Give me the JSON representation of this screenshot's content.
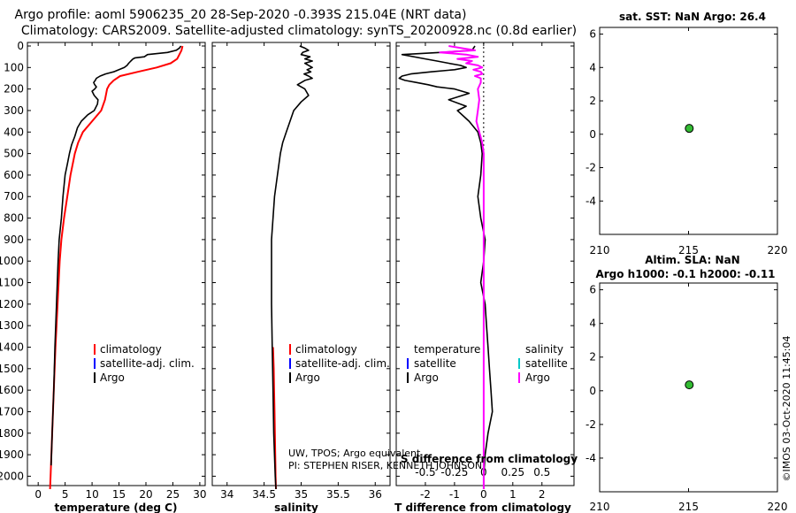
{
  "header": {
    "line1": "Argo profile: aoml 5906235_20 28-Sep-2020 -0.393S 215.04E (NRT data)",
    "line2": "Climatology: CARS2009. Satellite-adjusted climatology: synTS_20200928.nc (0.8d earlier)"
  },
  "colors": {
    "climatology": "#ff0000",
    "satellite_adj": "#0000ff",
    "argo": "#000000",
    "salinity_sat": "#00c8c8",
    "salinity_argo": "#ff00ff",
    "marker_fill": "#33bb33"
  },
  "depth_ticks": [
    "0",
    "100",
    "200",
    "300",
    "400",
    "500",
    "600",
    "700",
    "800",
    "900",
    "1000",
    "1100",
    "1200",
    "1300",
    "1400",
    "1500",
    "1600",
    "1700",
    "1800",
    "1900",
    "2000"
  ],
  "legend1": {
    "climatology": "climatology",
    "satellite": "satellite-adj. clim.",
    "argo": "Argo"
  },
  "legend2": {
    "climatology": "climatology",
    "satellite": "satellite-adj. clim.",
    "argo": "Argo"
  },
  "legend3": {
    "temperature_title": "temperature",
    "salinity_title": "salinity",
    "satellite": "satellite",
    "argo": "Argo"
  },
  "credit": {
    "line1": "UW, TPOS; Argo equivalent",
    "line2": "PI: STEPHEN RISER, KENNETH JOHNSON"
  },
  "side_title_1": "sat. SST: NaN Argo: 26.4",
  "side_title_2a": "Altim. SLA: NaN",
  "side_title_2b": "Argo h1000: -0.1 h2000: -0.11",
  "timestamp": "©IMOS 03-Oct-2020 11:45:04",
  "chart_data": [
    {
      "type": "line",
      "name": "temperature",
      "xlabel": "temperature (deg C)",
      "ylabel": "depth",
      "xlim": [
        -2,
        31
      ],
      "ylim": [
        0,
        2060
      ],
      "xticks": [
        "0",
        "5",
        "10",
        "15",
        "20",
        "25",
        "30"
      ],
      "xtick_values": [
        0,
        5,
        10,
        15,
        20,
        25,
        30
      ],
      "series": [
        {
          "name": "climatology",
          "color": "#ff0000",
          "depth": [
            0,
            20,
            40,
            60,
            80,
            100,
            120,
            140,
            160,
            180,
            200,
            250,
            300,
            350,
            400,
            450,
            500,
            600,
            700,
            800,
            900,
            1000,
            1200,
            1400,
            1600,
            1800,
            2000,
            2060
          ],
          "values": [
            26.8,
            26.6,
            26.2,
            25.8,
            24.6,
            22.0,
            18.5,
            15.2,
            14.0,
            13.2,
            12.8,
            12.4,
            11.7,
            10.0,
            8.3,
            7.4,
            6.8,
            6.0,
            5.4,
            4.8,
            4.3,
            4.0,
            3.6,
            3.2,
            2.9,
            2.6,
            2.3,
            2.2
          ]
        },
        {
          "name": "Argo",
          "color": "#000000",
          "depth": [
            0,
            10,
            20,
            30,
            40,
            50,
            55,
            60,
            70,
            80,
            90,
            100,
            110,
            120,
            130,
            140,
            150,
            160,
            170,
            180,
            190,
            200,
            210,
            230,
            250,
            270,
            300,
            320,
            350,
            380,
            420,
            460,
            500,
            550,
            600,
            700,
            800,
            900,
            1000,
            1200,
            1400,
            1600,
            1800,
            1950
          ],
          "values": [
            26.5,
            26.2,
            25.6,
            24.0,
            20.3,
            19.7,
            18.0,
            17.6,
            17.2,
            16.8,
            16.5,
            16.0,
            15.0,
            14.0,
            12.5,
            11.5,
            10.8,
            10.6,
            10.3,
            10.5,
            10.8,
            10.5,
            10.0,
            10.4,
            11.1,
            11.0,
            10.4,
            9.2,
            8.0,
            7.3,
            6.8,
            6.2,
            5.8,
            5.4,
            5.0,
            4.6,
            4.3,
            3.9,
            3.7,
            3.4,
            3.1,
            2.9,
            2.6,
            2.4
          ]
        }
      ]
    },
    {
      "type": "line",
      "name": "salinity",
      "xlabel": "salinity",
      "ylabel": "depth",
      "xlim": [
        33.8,
        36.2
      ],
      "ylim": [
        0,
        2060
      ],
      "xticks": [
        "34",
        "34.5",
        "35",
        "35.5",
        "36"
      ],
      "xtick_values": [
        34,
        34.5,
        35,
        35.5,
        36
      ],
      "series": [
        {
          "name": "climatology",
          "color": "#ff0000",
          "depth": [
            1400,
            1500,
            1600,
            1700,
            1800,
            1900,
            2000,
            2060
          ],
          "values": [
            34.62,
            34.63,
            34.635,
            34.64,
            34.645,
            34.65,
            34.655,
            34.66
          ]
        },
        {
          "name": "Argo",
          "color": "#000000",
          "depth": [
            0,
            10,
            20,
            30,
            40,
            50,
            60,
            70,
            80,
            90,
            100,
            110,
            120,
            130,
            140,
            150,
            160,
            180,
            200,
            230,
            260,
            300,
            350,
            400,
            450,
            500,
            600,
            700,
            800,
            900,
            1000,
            1200,
            1400,
            1600,
            1800,
            2000,
            2060
          ],
          "values": [
            34.98,
            35.05,
            35.1,
            35.02,
            35.0,
            35.12,
            35.05,
            35.15,
            35.05,
            35.1,
            35.15,
            35.08,
            35.13,
            35.04,
            35.1,
            35.15,
            35.05,
            34.95,
            35.05,
            35.1,
            35.0,
            34.9,
            34.85,
            34.8,
            34.75,
            34.72,
            34.68,
            34.64,
            34.62,
            34.6,
            34.6,
            34.6,
            34.61,
            34.62,
            34.63,
            34.65,
            34.66
          ]
        }
      ]
    },
    {
      "type": "line",
      "name": "difference",
      "xlabel": "T difference from climatology",
      "xlabel_top": "S difference from climatology",
      "ylabel": "depth",
      "xlim": [
        -3,
        3.1
      ],
      "ylim": [
        0,
        2060
      ],
      "xticks": [
        "-2",
        "-1",
        "0",
        "1",
        "2"
      ],
      "xtick_values": [
        -2,
        -1,
        0,
        1,
        2
      ],
      "xticks_top": [
        "-0.5",
        "-0.25",
        "0",
        "0.25",
        "0.5"
      ],
      "xtick_top_positions": [
        -2,
        -1,
        0,
        1,
        2
      ],
      "series": [
        {
          "name": "T difference",
          "color": "#000000",
          "depth": [
            0,
            20,
            30,
            40,
            60,
            70,
            80,
            90,
            100,
            110,
            120,
            130,
            140,
            150,
            160,
            170,
            180,
            190,
            200,
            220,
            250,
            280,
            300,
            350,
            400,
            450,
            500,
            600,
            700,
            800,
            900,
            1000,
            1100,
            1200,
            1300,
            1400,
            1500,
            1600,
            1700,
            1800,
            1900,
            2000,
            2060
          ],
          "values": [
            -0.3,
            -0.4,
            -1.5,
            -2.8,
            -2.0,
            -1.6,
            -1.2,
            -0.8,
            -0.6,
            -1.0,
            -1.8,
            -2.5,
            -2.8,
            -2.9,
            -2.7,
            -2.3,
            -1.9,
            -1.6,
            -1.0,
            -0.5,
            -1.2,
            -0.6,
            -0.9,
            -0.5,
            -0.2,
            -0.1,
            -0.05,
            -0.1,
            -0.2,
            -0.1,
            0.05,
            0.0,
            -0.1,
            0.05,
            0.1,
            0.15,
            0.2,
            0.25,
            0.3,
            0.15,
            0.05,
            0.0,
            0.0
          ]
        },
        {
          "name": "S difference",
          "color": "#ff00ff",
          "depth": [
            0,
            20,
            30,
            40,
            50,
            60,
            70,
            80,
            90,
            100,
            110,
            120,
            130,
            140,
            150,
            170,
            200,
            250,
            300,
            350,
            400,
            450,
            500,
            600,
            800,
            1000,
            1200,
            1400,
            1600,
            1800,
            2000,
            2060
          ],
          "values": [
            -1.2,
            -0.3,
            -1.5,
            -0.6,
            -0.2,
            -0.9,
            -0.4,
            -0.6,
            -0.2,
            -0.05,
            -0.35,
            -0.1,
            -0.05,
            -0.3,
            -0.1,
            -0.1,
            -0.2,
            -0.15,
            -0.2,
            -0.25,
            -0.15,
            -0.05,
            0.0,
            0.0,
            0.0,
            0.0,
            0.0,
            0.0,
            0.0,
            0.0,
            0.0,
            0.0
          ]
        }
      ]
    },
    {
      "type": "scatter",
      "name": "SST",
      "xlim": [
        210,
        220
      ],
      "ylim": [
        -6,
        6.4
      ],
      "xticks": [
        "210",
        "215",
        "220"
      ],
      "xtick_values": [
        210,
        215,
        220
      ],
      "yticks": [
        "-4",
        "-2",
        "0",
        "2",
        "4",
        "6"
      ],
      "ytick_values": [
        -4,
        -2,
        0,
        2,
        4,
        6
      ],
      "points": [
        {
          "x": 215.04,
          "y": 0.35
        }
      ]
    },
    {
      "type": "scatter",
      "name": "SLA",
      "xlim": [
        210,
        220
      ],
      "ylim": [
        -6,
        6.4
      ],
      "xticks": [
        "210",
        "215",
        "220"
      ],
      "xtick_values": [
        210,
        215,
        220
      ],
      "yticks": [
        "-4",
        "-2",
        "0",
        "2",
        "4",
        "6"
      ],
      "ytick_values": [
        -4,
        -2,
        0,
        2,
        4,
        6
      ],
      "points": [
        {
          "x": 215.04,
          "y": 0.35
        }
      ]
    }
  ]
}
